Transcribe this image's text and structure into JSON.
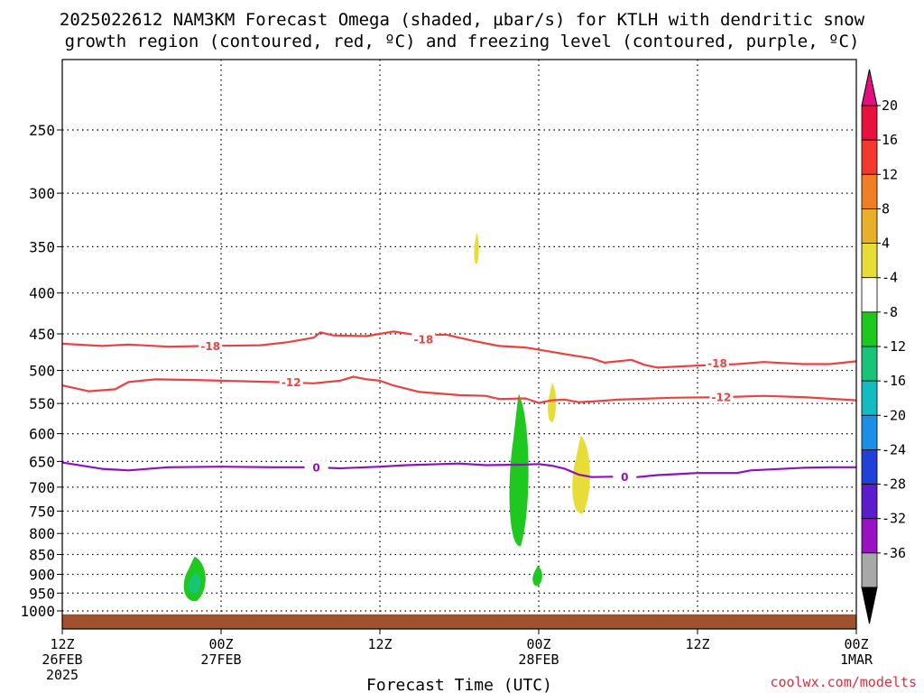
{
  "title_line1": "2025022612 NAM3KM Forecast Omega (shaded, µbar/s) for KTLH with dendritic snow",
  "title_line2": "growth region (contoured, red, ºC) and freezing level (contoured, purple, ºC)",
  "credit": "coolwx.com/modelts",
  "colors": {
    "dgz_contour": "#ee4040",
    "freezing_contour": "#9010c0",
    "ground": "#a0522d",
    "grid": "#000000"
  },
  "chart_data": {
    "type": "heatmap",
    "xlabel": "Forecast Time (UTC)",
    "ylabel": "",
    "x_range_hours": [
      0,
      60
    ],
    "y_log_pressure": true,
    "ylim": [
      1040,
      190
    ],
    "y_ticks": [
      250,
      300,
      350,
      400,
      450,
      500,
      550,
      600,
      650,
      700,
      750,
      800,
      850,
      900,
      950,
      1000
    ],
    "x_ticks": [
      {
        "hour": 0,
        "line1": "12Z",
        "line2": "26FEB",
        "line3": "2025"
      },
      {
        "hour": 12,
        "line1": "00Z",
        "line2": "27FEB",
        "line3": ""
      },
      {
        "hour": 24,
        "line1": "12Z",
        "line2": "",
        "line3": ""
      },
      {
        "hour": 36,
        "line1": "00Z",
        "line2": "28FEB",
        "line3": ""
      },
      {
        "hour": 48,
        "line1": "12Z",
        "line2": "",
        "line3": ""
      },
      {
        "hour": 60,
        "line1": "00Z",
        "line2": "1MAR",
        "line3": ""
      }
    ],
    "grid": true,
    "colorbar": {
      "labels": [
        "20",
        "16",
        "12",
        "8",
        "4",
        "-4",
        "-8",
        "-12",
        "-16",
        "-20",
        "-24",
        "-28",
        "-32",
        "-36"
      ],
      "colors": [
        "#e8113b",
        "#f2382f",
        "#f07f24",
        "#e8b02a",
        "#e8dc36",
        "#ffffff",
        "#1ec81e",
        "#18c47a",
        "#12bcc0",
        "#1890e8",
        "#2040d8",
        "#5a1ccc",
        "#9a10c4",
        "#a8a8a8"
      ],
      "top_arrow_color": "#e0107c",
      "bottom_arrow_color": "#000000"
    },
    "contours": [
      {
        "level": "-18",
        "color": "#ee4040",
        "points": [
          [
            0,
            463
          ],
          [
            3,
            466
          ],
          [
            5,
            464
          ],
          [
            8,
            467
          ],
          [
            11,
            466
          ],
          [
            15,
            465
          ],
          [
            17,
            461
          ],
          [
            19,
            455
          ],
          [
            19.5,
            448
          ],
          [
            20.5,
            452
          ],
          [
            23,
            453
          ],
          [
            25,
            447
          ],
          [
            27,
            452
          ],
          [
            29,
            451
          ],
          [
            31,
            459
          ],
          [
            33,
            466
          ],
          [
            35,
            468
          ],
          [
            38,
            477
          ],
          [
            40,
            483
          ],
          [
            41,
            489
          ],
          [
            43,
            485
          ],
          [
            44,
            492
          ],
          [
            45,
            496
          ],
          [
            48,
            493
          ],
          [
            51,
            491
          ],
          [
            53,
            488
          ],
          [
            56,
            491
          ],
          [
            58,
            491
          ],
          [
            60,
            487
          ]
        ],
        "labels": [
          {
            "x": 11.2,
            "y": 466
          },
          {
            "x": 27.3,
            "y": 457
          },
          {
            "x": 49.5,
            "y": 490
          }
        ]
      },
      {
        "level": "-12",
        "color": "#ee4040",
        "points": [
          [
            0,
            522
          ],
          [
            2,
            531
          ],
          [
            4,
            528
          ],
          [
            5,
            517
          ],
          [
            7,
            513
          ],
          [
            10,
            514
          ],
          [
            14,
            516
          ],
          [
            16,
            517
          ],
          [
            19,
            519
          ],
          [
            21,
            515
          ],
          [
            22,
            509
          ],
          [
            23,
            513
          ],
          [
            24,
            515
          ],
          [
            25,
            522
          ],
          [
            27,
            532
          ],
          [
            30,
            537
          ],
          [
            32,
            538
          ],
          [
            33,
            543
          ],
          [
            35,
            542
          ],
          [
            36,
            549
          ],
          [
            37,
            545
          ],
          [
            38,
            544
          ],
          [
            39,
            548
          ],
          [
            40,
            547
          ],
          [
            42,
            544
          ],
          [
            46,
            541
          ],
          [
            50,
            540
          ],
          [
            53,
            538
          ],
          [
            56,
            540
          ],
          [
            60,
            545
          ]
        ],
        "labels": [
          {
            "x": 17.3,
            "y": 517
          },
          {
            "x": 49.8,
            "y": 540
          }
        ]
      },
      {
        "level": "0",
        "color": "#9010c0",
        "points": [
          [
            0,
            652
          ],
          [
            3,
            664
          ],
          [
            5,
            667
          ],
          [
            8,
            661
          ],
          [
            12,
            660
          ],
          [
            16,
            661
          ],
          [
            19,
            661
          ],
          [
            21,
            663
          ],
          [
            24,
            660
          ],
          [
            26,
            657
          ],
          [
            30,
            654
          ],
          [
            32,
            657
          ],
          [
            35,
            656
          ],
          [
            36,
            655
          ],
          [
            37,
            658
          ],
          [
            38,
            664
          ],
          [
            39,
            675
          ],
          [
            40,
            680
          ],
          [
            42,
            679
          ],
          [
            43,
            681
          ],
          [
            45,
            676
          ],
          [
            48,
            672
          ],
          [
            51,
            672
          ],
          [
            52,
            667
          ],
          [
            56,
            662
          ],
          [
            58,
            661
          ],
          [
            60,
            661
          ]
        ],
        "labels": [
          {
            "x": 19.2,
            "y": 661
          },
          {
            "x": 42.5,
            "y": 680
          }
        ]
      }
    ],
    "shaded_regions": [
      {
        "value_range": [
          4,
          8
        ],
        "color": "#e8dc36",
        "center_hour": 31.3,
        "pressure_range": [
          336,
          368
        ],
        "width_hours": 0.35
      },
      {
        "value_range": [
          4,
          8
        ],
        "color": "#e8dc36",
        "center_hour": 37.0,
        "pressure_range": [
          518,
          580
        ],
        "width_hours": 0.6
      },
      {
        "value_range": [
          4,
          8
        ],
        "color": "#e8dc36",
        "center_hour": 39.2,
        "pressure_range": [
          603,
          755
        ],
        "width_hours": 1.3
      },
      {
        "value_range": [
          -8,
          -4
        ],
        "color": "#1ec81e",
        "center_hour": 34.5,
        "pressure_range": [
          535,
          830
        ],
        "width_hours": 1.4
      },
      {
        "value_range": [
          -8,
          -4
        ],
        "color": "#1ec81e",
        "center_hour": 35.9,
        "pressure_range": [
          878,
          930
        ],
        "width_hours": 0.7
      },
      {
        "value_range": [
          -8,
          -4
        ],
        "color": "#1ec81e",
        "center_hour": 10.0,
        "pressure_range": [
          855,
          972
        ],
        "width_hours": 1.6
      },
      {
        "value_range": [
          -12,
          -8
        ],
        "color": "#18c47a",
        "center_hour": 10.0,
        "pressure_range": [
          895,
          950
        ],
        "width_hours": 0.9
      }
    ],
    "ground_pressure": 1010
  }
}
